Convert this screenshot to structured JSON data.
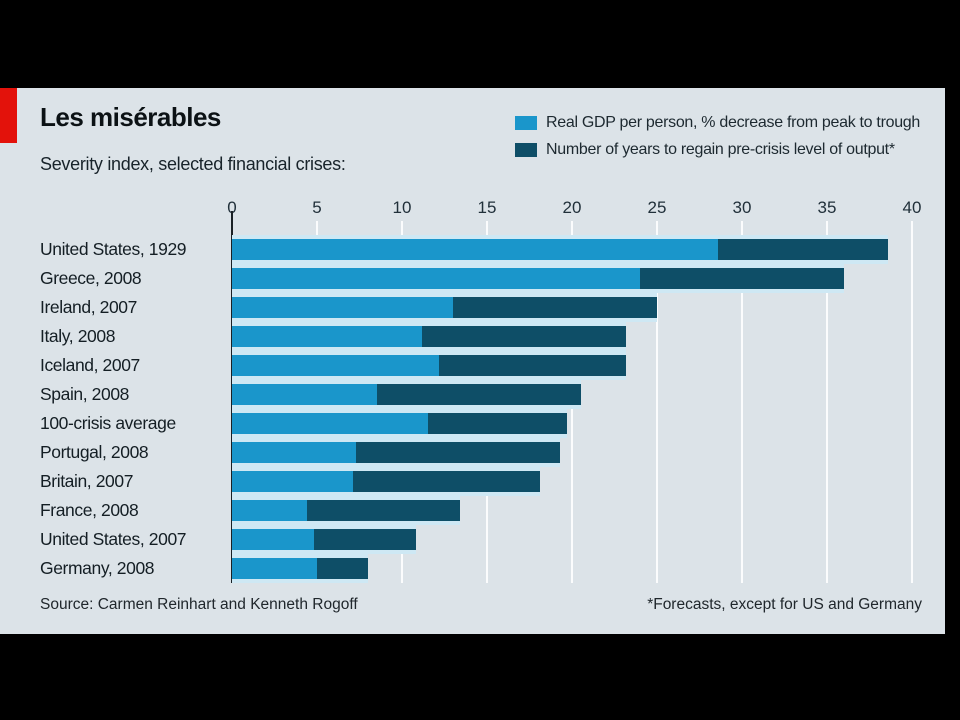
{
  "header": {
    "title": "Les misérables",
    "subtitle": "Severity index, selected financial crises:"
  },
  "legend": {
    "items": [
      {
        "label": "Real GDP per person, % decrease from peak to trough",
        "color": "#1a96cb"
      },
      {
        "label": "Number of years to regain pre-crisis level of output*",
        "color": "#0e4e67"
      }
    ]
  },
  "footer": {
    "source": "Source: Carmen Reinhart and Kenneth Rogoff",
    "footnote": "*Forecasts, except for US and Germany"
  },
  "chart_data": {
    "type": "bar",
    "orientation": "horizontal",
    "stacked": true,
    "title": "Les misérables",
    "subtitle": "Severity index, selected financial crises:",
    "xlim": [
      0,
      40
    ],
    "x_ticks": [
      0,
      5,
      10,
      15,
      20,
      25,
      30,
      35,
      40
    ],
    "grid": "vertical-white",
    "legend_position": "top-right",
    "categories": [
      "United States, 1929",
      "Greece, 2008",
      "Ireland, 2007",
      "Italy, 2008",
      "Iceland, 2007",
      "Spain, 2008",
      "100-crisis average",
      "Portugal, 2008",
      "Britain, 2007",
      "France, 2008",
      "United States, 2007",
      "Germany, 2008"
    ],
    "series": [
      {
        "name": "Real GDP per person, % decrease from peak to trough",
        "color": "#1a96cb",
        "values": [
          28.6,
          24.0,
          13.0,
          11.2,
          12.2,
          8.5,
          11.5,
          7.3,
          7.1,
          4.4,
          4.8,
          5.0
        ]
      },
      {
        "name": "Number of years to regain pre-crisis level of output*",
        "color": "#0e4e67",
        "values": [
          10.0,
          12.0,
          12.0,
          12.0,
          11.0,
          12.0,
          8.2,
          12.0,
          11.0,
          9.0,
          6.0,
          3.0
        ]
      }
    ],
    "totals": [
      38.6,
      36.0,
      25.0,
      23.2,
      23.2,
      20.5,
      19.7,
      19.3,
      18.1,
      13.4,
      10.8,
      8.0
    ],
    "colors": {
      "track": "#cee8f4",
      "background": "#dce3e8",
      "accent_red": "#e3120b"
    }
  }
}
